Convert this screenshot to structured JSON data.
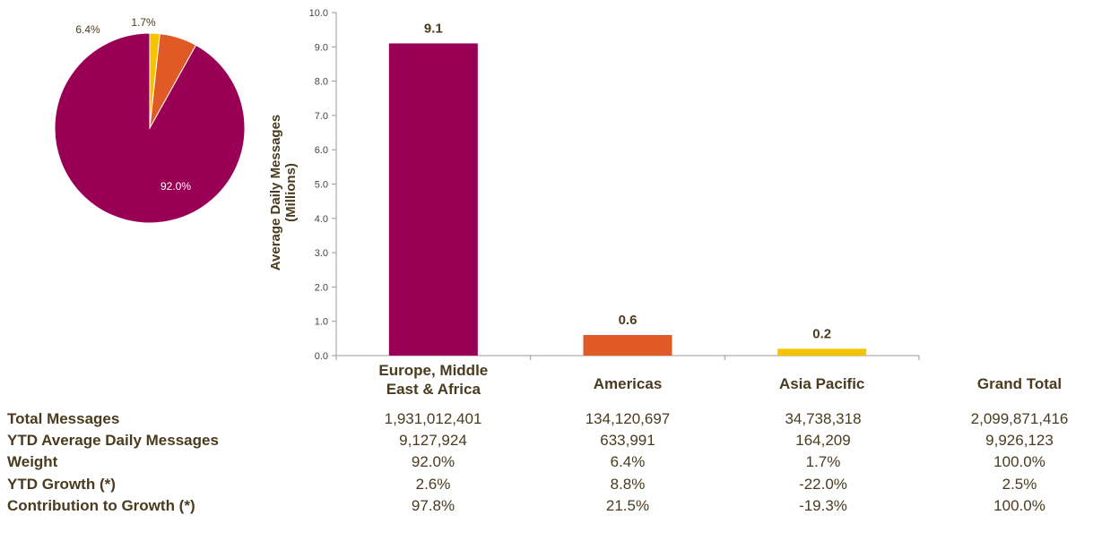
{
  "colors": {
    "emea": "#990055",
    "americas": "#E05A26",
    "apac": "#F5C400",
    "axis": "#999999",
    "text": "#4a3b1f"
  },
  "chart_data": [
    {
      "type": "pie",
      "categories": [
        "Europe, Middle East & Africa",
        "Americas",
        "Asia Pacific"
      ],
      "values": [
        92.0,
        6.4,
        1.7
      ],
      "labels": [
        "92.0%",
        "6.4%",
        "1.7%"
      ]
    },
    {
      "type": "bar",
      "categories": [
        "Europe, Middle East & Africa",
        "Americas",
        "Asia Pacific"
      ],
      "category_lines": [
        [
          "Europe, Middle",
          "East & Africa"
        ],
        [
          "Americas"
        ],
        [
          "Asia Pacific"
        ]
      ],
      "values": [
        9.1,
        0.6,
        0.2
      ],
      "value_labels": [
        "9.1",
        "0.6",
        "0.2"
      ],
      "ylabel": [
        "Average Daily Messages",
        "(Millions)"
      ],
      "ylim": [
        0,
        10
      ],
      "yticks": [
        "0.0",
        "1.0",
        "2.0",
        "3.0",
        "4.0",
        "5.0",
        "6.0",
        "7.0",
        "8.0",
        "9.0",
        "10.0"
      ],
      "grid": false
    }
  ],
  "table": {
    "grand_total_header": "Grand Total",
    "rows": [
      {
        "label": "Total Messages",
        "values": [
          "1,931,012,401",
          "134,120,697",
          "34,738,318",
          "2,099,871,416"
        ]
      },
      {
        "label": "YTD Average Daily Messages",
        "values": [
          "9,127,924",
          "633,991",
          "164,209",
          "9,926,123"
        ]
      },
      {
        "label": "Weight",
        "values": [
          "92.0%",
          "6.4%",
          "1.7%",
          "100.0%"
        ]
      },
      {
        "label": "YTD Growth (*)",
        "values": [
          "2.6%",
          "8.8%",
          "-22.0%",
          "2.5%"
        ]
      },
      {
        "label": "Contribution to Growth (*)",
        "values": [
          "97.8%",
          "21.5%",
          "-19.3%",
          "100.0%"
        ]
      }
    ]
  }
}
